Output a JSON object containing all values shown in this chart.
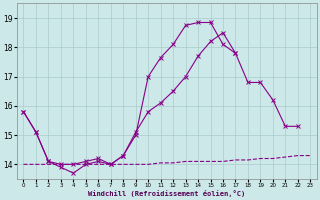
{
  "xlabel": "Windchill (Refroidissement éolien,°C)",
  "bg_color": "#cce8e8",
  "line_color": "#880088",
  "grid_color": "#aacccc",
  "xlim_min": -0.5,
  "xlim_max": 23.5,
  "ylim_min": 13.5,
  "ylim_max": 19.5,
  "yticks": [
    14,
    15,
    16,
    17,
    18,
    19
  ],
  "xticks": [
    0,
    1,
    2,
    3,
    4,
    5,
    6,
    7,
    8,
    9,
    10,
    11,
    12,
    13,
    14,
    15,
    16,
    17,
    18,
    19,
    20,
    21,
    22,
    23
  ],
  "line1_x": [
    0,
    1,
    2,
    3,
    4,
    5,
    6,
    7,
    8,
    9,
    10,
    11,
    12,
    13,
    14,
    15,
    16,
    17
  ],
  "line1_y": [
    15.8,
    15.1,
    14.1,
    13.9,
    13.7,
    14.0,
    14.1,
    14.0,
    14.3,
    15.0,
    17.0,
    17.65,
    18.1,
    18.75,
    18.85,
    18.85,
    18.1,
    17.8
  ],
  "line2_x": [
    0,
    1,
    2,
    3,
    4,
    5,
    6,
    7,
    8,
    9,
    10,
    11,
    12,
    13,
    14,
    15,
    16,
    17,
    18,
    19,
    20,
    21,
    22,
    23
  ],
  "line2_y": [
    15.8,
    15.1,
    14.1,
    14.0,
    14.0,
    14.1,
    14.2,
    14.0,
    14.3,
    15.1,
    15.8,
    16.1,
    16.5,
    17.0,
    17.7,
    18.2,
    18.5,
    17.8,
    16.8,
    16.8,
    16.2,
    15.3,
    15.3,
    null
  ],
  "line3_x": [
    0,
    1,
    2,
    3,
    4,
    5,
    6,
    7,
    8,
    9,
    10,
    11,
    12,
    13,
    14,
    15,
    16,
    17,
    18,
    19,
    20,
    21,
    22,
    23
  ],
  "line3_y": [
    14.0,
    14.0,
    14.0,
    14.0,
    14.0,
    14.0,
    14.0,
    14.0,
    14.0,
    14.0,
    14.0,
    14.05,
    14.05,
    14.1,
    14.1,
    14.1,
    14.1,
    14.15,
    14.15,
    14.2,
    14.2,
    14.25,
    14.3,
    14.3
  ]
}
